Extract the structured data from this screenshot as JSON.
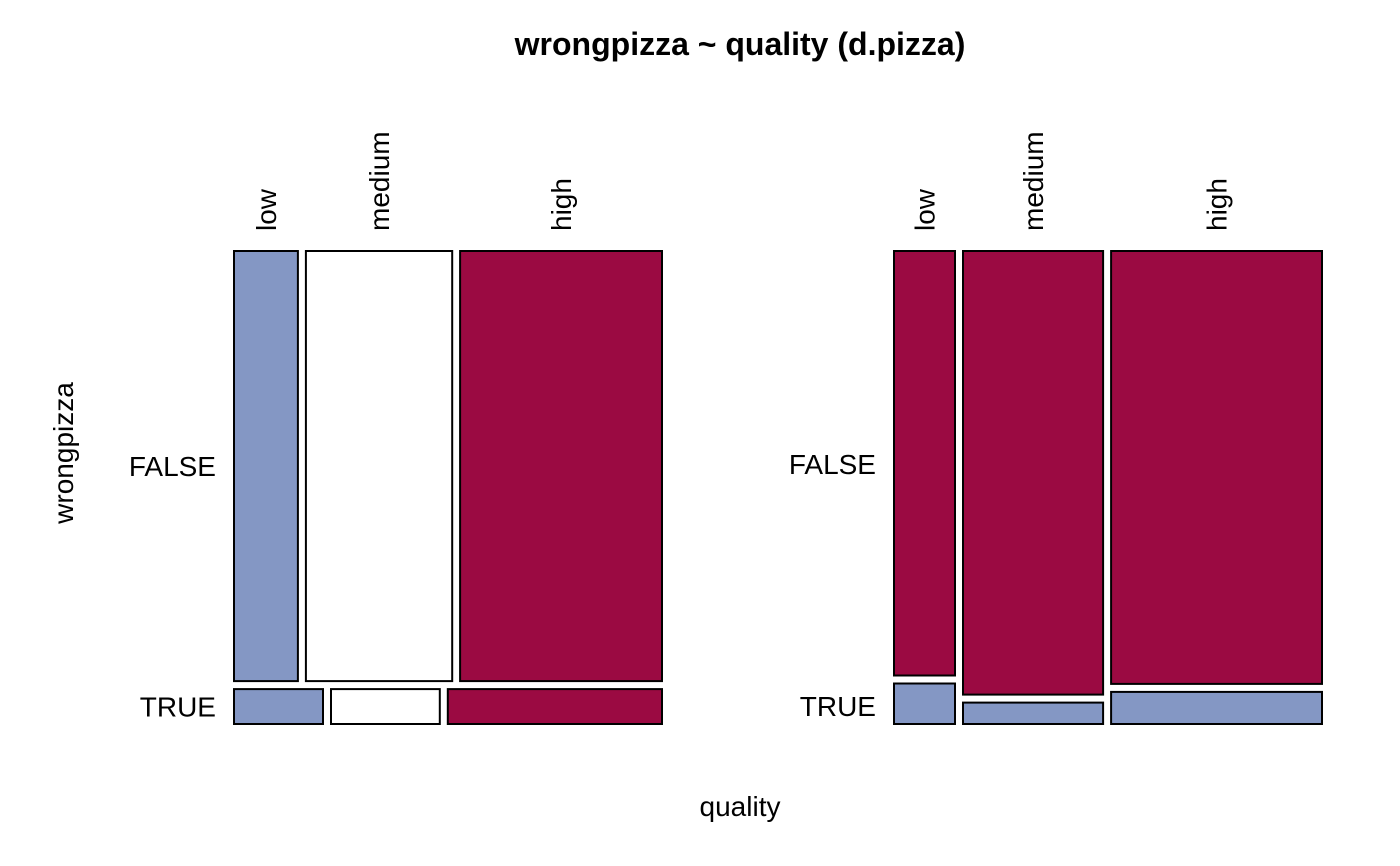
{
  "chart_data": {
    "type": "mosaic",
    "title": "wrongpizza ~ quality (d.pizza)",
    "xlabel": "quality",
    "ylabel": "wrongpizza",
    "categories": [
      "low",
      "medium",
      "high"
    ],
    "rows": [
      "FALSE",
      "TRUE"
    ],
    "colors": {
      "blue": "#8497c4",
      "white": "#ffffff",
      "crimson": "#9b0a42",
      "border": "#000000"
    },
    "panels": [
      {
        "name": "left-panel",
        "row_shares": [
          0.925,
          0.075
        ],
        "column_widths": {
          "FALSE": [
            0.155,
            0.355,
            0.49
          ],
          "TRUE": [
            0.216,
            0.264,
            0.52
          ]
        },
        "cell_colors": {
          "FALSE": [
            "blue",
            "white",
            "crimson"
          ],
          "TRUE": [
            "blue",
            "white",
            "crimson"
          ]
        }
      },
      {
        "name": "right-panel",
        "column_widths": [
          0.148,
          0.34,
          0.512
        ],
        "true_share": [
          0.087,
          0.046,
          0.069
        ],
        "cell_colors": {
          "FALSE": [
            "crimson",
            "crimson",
            "crimson"
          ],
          "TRUE": [
            "blue",
            "blue",
            "blue"
          ]
        }
      }
    ]
  }
}
